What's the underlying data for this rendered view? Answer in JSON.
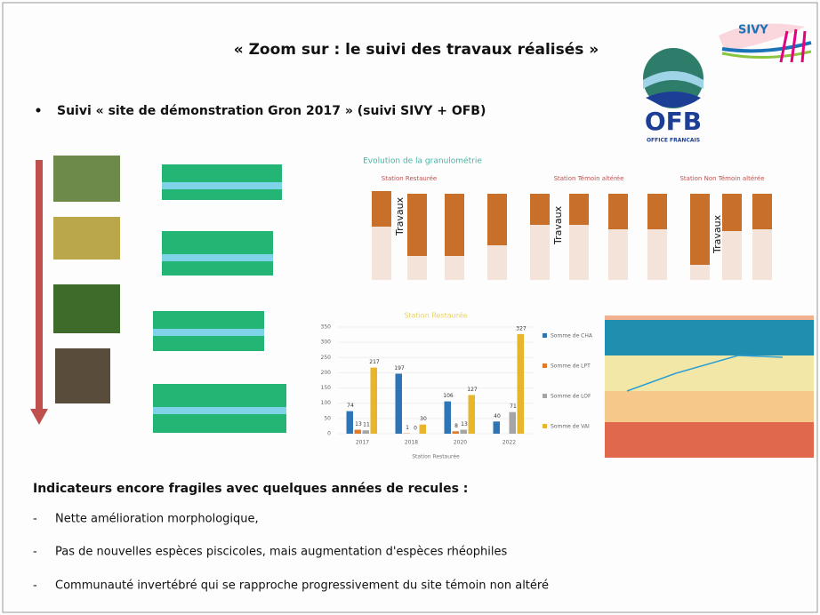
{
  "header": {
    "title": "« Zoom sur : le suivi des travaux réalisés »",
    "logo": "SIVY"
  },
  "subtitle": "Suivi « site de démonstration Gron 2017 » (suivi SIVY + OFB)",
  "ofb": {
    "name": "OFB",
    "tagline": "OFFICE FRANCAIS"
  },
  "granulometry": {
    "title": "Evolution de la granulométrie",
    "stations": [
      "Station Restaurée",
      "Station Témoin altérée",
      "Station Non Témoin altérée"
    ],
    "marker": "Travaux"
  },
  "chart_data": {
    "type": "bar",
    "title": "Station Restaurée",
    "x_label": "Station Restaurée",
    "categories": [
      "2017",
      "2018",
      "2020",
      "2022"
    ],
    "series": [
      {
        "name": "Somme de CHA",
        "color": "#2e75b6",
        "values": [
          74,
          197,
          106,
          40
        ]
      },
      {
        "name": "Somme de LPT",
        "color": "#e07b2a",
        "values": [
          13,
          1,
          8,
          null
        ]
      },
      {
        "name": "Somme de LOF",
        "color": "#a5a5a5",
        "values": [
          11,
          0,
          13,
          71
        ]
      },
      {
        "name": "Somme de VAI",
        "color": "#e8b52c",
        "values": [
          217,
          30,
          127,
          327
        ]
      }
    ],
    "ylim": [
      0,
      350
    ],
    "yticks": [
      0,
      50,
      100,
      150,
      200,
      250,
      300,
      350
    ]
  },
  "conclusion": {
    "heading": "Indicateurs encore fragiles avec quelques années de recules :",
    "items": [
      "Nette amélioration morphologique,",
      "Pas de nouvelles espèces piscicoles, mais augmentation d'espèces rhéophiles",
      "Communauté invertébré qui se rapproche progressivement du site témoin non altéré"
    ]
  }
}
